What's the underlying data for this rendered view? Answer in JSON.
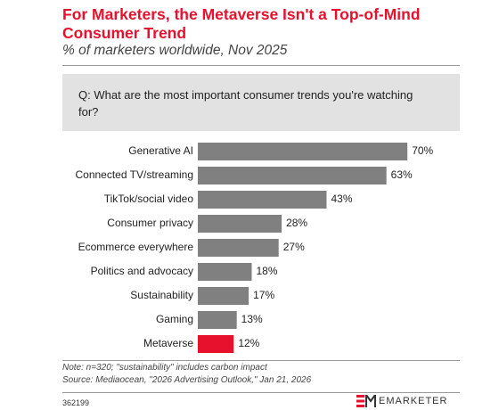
{
  "chart_data": {
    "type": "bar",
    "orientation": "horizontal",
    "title": "For Marketers, the Metaverse Isn't a Top-of-Mind Consumer Trend",
    "subtitle": "% of marketers worldwide, Nov 2025",
    "question": "Q: What are the most important consumer trends you're watching for?",
    "categories": [
      "Generative AI",
      "Connected TV/streaming",
      "TikTok/social video",
      "Consumer privacy",
      "Ecommerce everywhere",
      "Politics and advocacy",
      "Sustainability",
      "Gaming",
      "Metaverse"
    ],
    "values": [
      70,
      63,
      43,
      28,
      27,
      18,
      17,
      13,
      12
    ],
    "value_labels": [
      "70%",
      "63%",
      "43%",
      "28%",
      "27%",
      "18%",
      "17%",
      "13%",
      "12%"
    ],
    "colors": [
      "#808080",
      "#808080",
      "#808080",
      "#808080",
      "#808080",
      "#808080",
      "#808080",
      "#808080",
      "#e8112d"
    ],
    "note": "Note: n=320; \"sustainability\" includes carbon impact",
    "source": "Source: Mediaocean, \"2026 Advertising Outlook,\" Jan 21, 2026",
    "chart_id": "362199",
    "brand": "EMARKETER"
  }
}
